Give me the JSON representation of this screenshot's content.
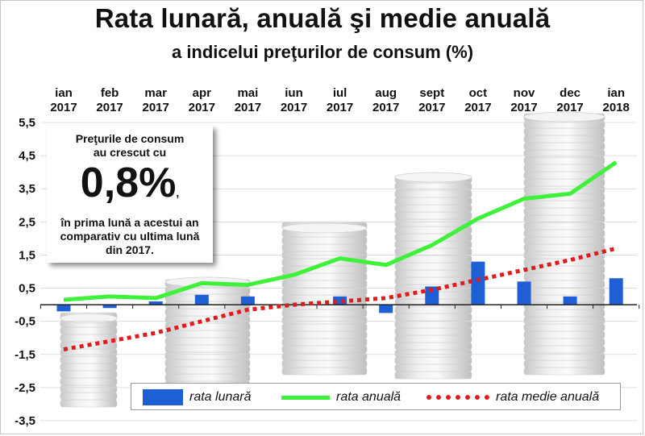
{
  "title": "Rata lunară, anuală şi medie anuală",
  "subtitle": "a indicelui preţurilor de consum (%)",
  "callout": {
    "line1": "Preţurile de consum",
    "line2": "au crescut cu",
    "big": "0,8%",
    "comma": ",",
    "line3": "în prima lună a acestui an",
    "line4": "comparativ cu ultima lună",
    "line5": "din 2017."
  },
  "legend": {
    "monthly": "rata lunară",
    "annual": "rata anuală",
    "average": "rata medie anuală"
  },
  "colors": {
    "monthly": "#1f5fd6",
    "annual": "#3ef23a",
    "average": "#e11a1a"
  },
  "chart_data": {
    "type": "bar",
    "categories": [
      [
        "ian",
        "2017"
      ],
      [
        "feb",
        "2017"
      ],
      [
        "mar",
        "2017"
      ],
      [
        "apr",
        "2017"
      ],
      [
        "mai",
        "2017"
      ],
      [
        "iun",
        "2017"
      ],
      [
        "iul",
        "2017"
      ],
      [
        "aug",
        "2017"
      ],
      [
        "sept",
        "2017"
      ],
      [
        "oct",
        "2017"
      ],
      [
        "nov",
        "2017"
      ],
      [
        "dec",
        "2017"
      ],
      [
        "ian",
        "2018"
      ]
    ],
    "yticks": [
      "5,5",
      "4,5",
      "3,5",
      "2,5",
      "1,5",
      "0,5",
      "-0,5",
      "-1,5",
      "-2,5",
      "-3,5"
    ],
    "ylim": [
      -3.5,
      5.5
    ],
    "series": [
      {
        "name": "rata lunară",
        "kind": "bar",
        "values": [
          -0.2,
          -0.1,
          0.1,
          0.3,
          0.25,
          0.0,
          0.25,
          -0.25,
          0.55,
          1.3,
          0.7,
          0.25,
          0.8
        ]
      },
      {
        "name": "rata anuală",
        "kind": "line",
        "values": [
          0.15,
          0.25,
          0.2,
          0.65,
          0.6,
          0.9,
          1.4,
          1.2,
          1.8,
          2.6,
          3.2,
          3.35,
          4.3
        ]
      },
      {
        "name": "rata medie anuală",
        "kind": "dotted",
        "values": [
          -1.35,
          -1.1,
          -0.85,
          -0.5,
          -0.15,
          0.0,
          0.1,
          0.2,
          0.45,
          0.75,
          1.05,
          1.35,
          1.7
        ]
      }
    ]
  }
}
